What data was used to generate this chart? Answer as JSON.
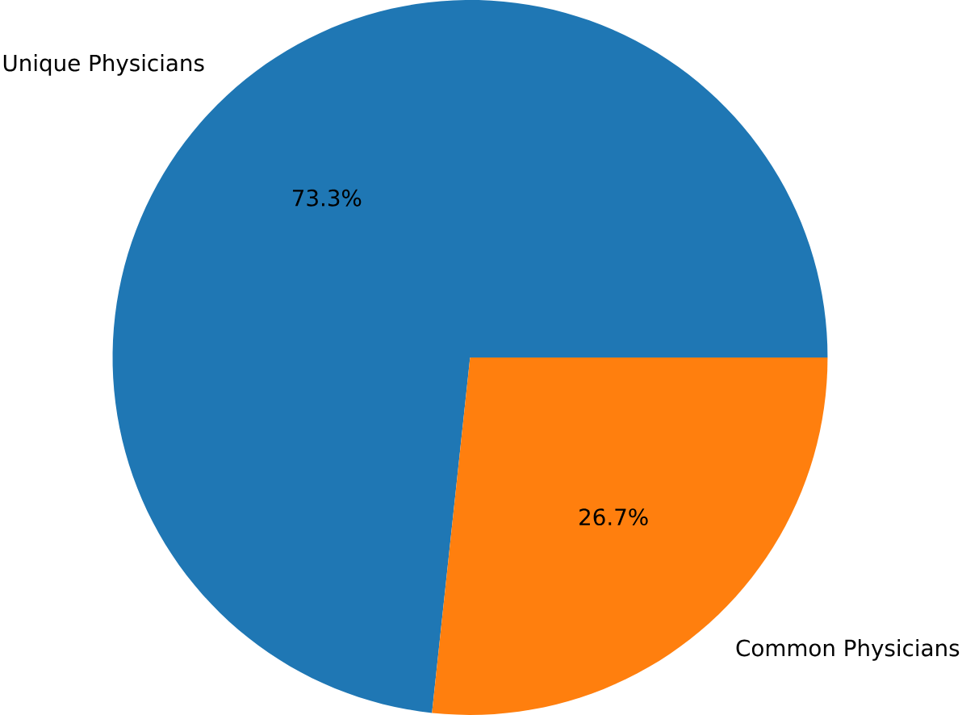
{
  "chart_data": {
    "type": "pie",
    "categories": [
      "Unique Physicians",
      "Common Physicians"
    ],
    "values": [
      73.3,
      26.7
    ],
    "colors": [
      "#1f77b4",
      "#ff7f0e"
    ],
    "value_labels": [
      "73.3%",
      "26.7%"
    ]
  }
}
